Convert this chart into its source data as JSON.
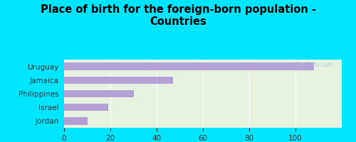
{
  "title": "Place of birth for the foreign-born population -\nCountries",
  "categories": [
    "Jordan",
    "Israel",
    "Philippines",
    "Jamaica",
    "Uruguay"
  ],
  "values": [
    108,
    47,
    30,
    19,
    10
  ],
  "bar_color": "#b3a0d4",
  "background_outer": "#00e5ff",
  "background_inner": "#e8f2e0",
  "xlim": [
    0,
    120
  ],
  "xticks": [
    0,
    20,
    40,
    60,
    80,
    100
  ],
  "title_fontsize": 10.5,
  "watermark": "City-Data.com"
}
